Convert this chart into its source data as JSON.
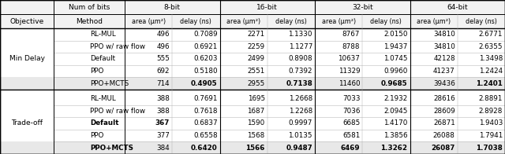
{
  "sections": [
    {
      "label": "Min Delay",
      "rows": [
        {
          "method": "RL-MUL",
          "values": [
            "496",
            "0.7089",
            "2271",
            "1.1330",
            "8767",
            "2.0150",
            "34810",
            "2.6771"
          ],
          "bold_method": false,
          "bold_vals": [
            false,
            false,
            false,
            false,
            false,
            false,
            false,
            false
          ]
        },
        {
          "method": "PPO w/ raw flow",
          "values": [
            "496",
            "0.6921",
            "2259",
            "1.1277",
            "8788",
            "1.9437",
            "34810",
            "2.6355"
          ],
          "bold_method": false,
          "bold_vals": [
            false,
            false,
            false,
            false,
            false,
            false,
            false,
            false
          ]
        },
        {
          "method": "Default",
          "values": [
            "555",
            "0.6203",
            "2499",
            "0.8908",
            "10637",
            "1.0745",
            "42128",
            "1.3498"
          ],
          "bold_method": false,
          "bold_vals": [
            false,
            false,
            false,
            false,
            false,
            false,
            false,
            false
          ]
        },
        {
          "method": "PPO",
          "values": [
            "692",
            "0.5180",
            "2551",
            "0.7392",
            "11329",
            "0.9960",
            "41237",
            "1.2424"
          ],
          "bold_method": false,
          "bold_vals": [
            false,
            false,
            false,
            false,
            false,
            false,
            false,
            false
          ]
        },
        {
          "method": "PPO+MCTS",
          "values": [
            "714",
            "0.4905",
            "2955",
            "0.7138",
            "11460",
            "0.9685",
            "39436",
            "1.2401"
          ],
          "bold_method": false,
          "bold_vals": [
            false,
            true,
            false,
            true,
            false,
            true,
            false,
            true
          ]
        }
      ]
    },
    {
      "label": "Trade-off",
      "rows": [
        {
          "method": "RL-MUL",
          "values": [
            "388",
            "0.7691",
            "1695",
            "1.2668",
            "7033",
            "2.1932",
            "28616",
            "2.8891"
          ],
          "bold_method": false,
          "bold_vals": [
            false,
            false,
            false,
            false,
            false,
            false,
            false,
            false
          ]
        },
        {
          "method": "PPO w/ raw flow",
          "values": [
            "388",
            "0.7618",
            "1687",
            "1.2268",
            "7036",
            "2.0945",
            "28609",
            "2.8928"
          ],
          "bold_method": false,
          "bold_vals": [
            false,
            false,
            false,
            false,
            false,
            false,
            false,
            false
          ]
        },
        {
          "method": "Default",
          "values": [
            "367",
            "0.6837",
            "1590",
            "0.9997",
            "6685",
            "1.4170",
            "26871",
            "1.9403"
          ],
          "bold_method": true,
          "bold_vals": [
            true,
            false,
            false,
            false,
            false,
            false,
            false,
            false
          ]
        },
        {
          "method": "PPO",
          "values": [
            "377",
            "0.6558",
            "1568",
            "1.0135",
            "6581",
            "1.3856",
            "26088",
            "1.7941"
          ],
          "bold_method": false,
          "bold_vals": [
            false,
            false,
            false,
            false,
            false,
            false,
            false,
            false
          ]
        },
        {
          "method": "PPO+MCTS",
          "values": [
            "384",
            "0.6420",
            "1566",
            "0.9487",
            "6469",
            "1.3262",
            "26087",
            "1.7038"
          ],
          "bold_method": true,
          "bold_vals": [
            false,
            true,
            true,
            true,
            true,
            true,
            true,
            true
          ]
        }
      ]
    }
  ],
  "highlight_color": "#e8e8e8",
  "header_bg_color": "#f2f2f2"
}
